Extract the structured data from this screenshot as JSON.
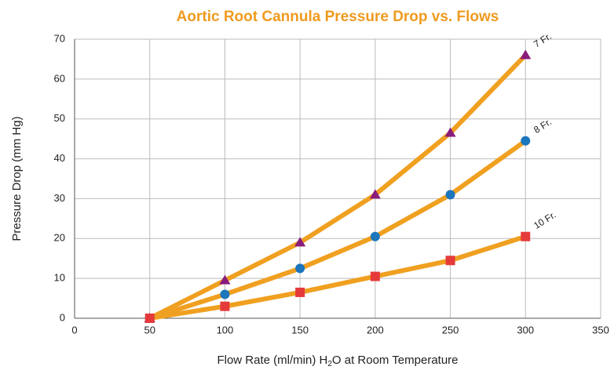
{
  "chart_data": {
    "type": "line",
    "title": "Aortic Root Cannula Pressure Drop vs. Flows",
    "xlabel": [
      "Flow Rate (ml/min) H",
      "2",
      "O at Room Temperature"
    ],
    "ylabel": "Pressure Drop (mm Hg)",
    "x": [
      50,
      100,
      150,
      200,
      250,
      300
    ],
    "series": [
      {
        "name": "7 Fr.",
        "color": "#f0a020",
        "marker": "triangle",
        "marker_color": "#8a1c7c",
        "values": [
          0,
          9.5,
          19,
          31,
          46.5,
          66
        ]
      },
      {
        "name": "8 Fr.",
        "color": "#f0a020",
        "marker": "circle",
        "marker_color": "#1b76bc",
        "values": [
          0,
          6,
          12.5,
          20.5,
          31,
          44.5
        ]
      },
      {
        "name": "10 Fr.",
        "color": "#f0a020",
        "marker": "square",
        "marker_color": "#e53a3a",
        "values": [
          0,
          3,
          6.5,
          10.5,
          14.5,
          20.5
        ]
      }
    ],
    "xlim": [
      0,
      350
    ],
    "xticks": [
      0,
      50,
      100,
      150,
      200,
      250,
      300,
      350
    ],
    "ylim": [
      0,
      70
    ],
    "yticks": [
      0,
      10,
      20,
      30,
      40,
      50,
      60,
      70
    ],
    "grid": true
  }
}
